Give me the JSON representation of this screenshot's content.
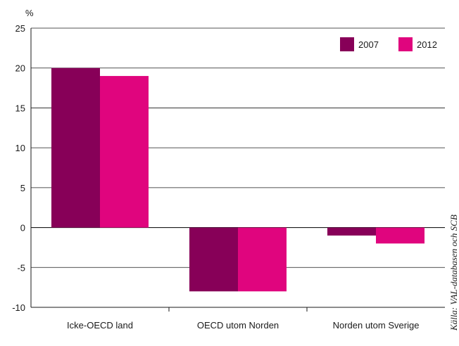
{
  "colors": {
    "series_2007": "#870058",
    "series_2012": "#e0057e",
    "grid": "#1a1a1a"
  },
  "source": "Källa: VAL-databasen och SCB",
  "chart_data": {
    "type": "bar",
    "unit_label": "%",
    "categories": [
      "Icke-OECD land",
      "OECD utom Norden",
      "Norden utom Sverige"
    ],
    "series": [
      {
        "name": "2007",
        "values": [
          20,
          -8,
          -1
        ]
      },
      {
        "name": "2012",
        "values": [
          19,
          -8,
          -2
        ]
      }
    ],
    "ylim": [
      -10,
      25
    ],
    "yticks": [
      25,
      20,
      15,
      10,
      5,
      0,
      -5,
      -10
    ],
    "grid": true,
    "legend_position": "top-right"
  }
}
